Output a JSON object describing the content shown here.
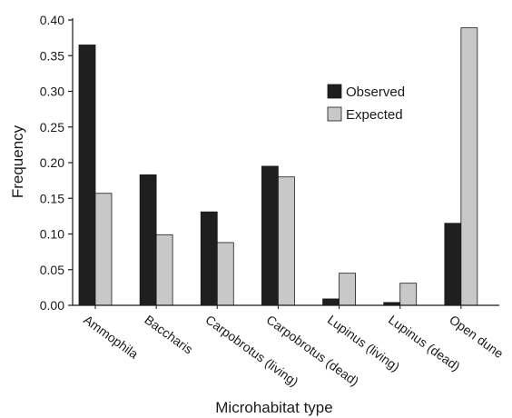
{
  "chart_data": {
    "type": "bar",
    "xlabel": "Microhabitat type",
    "ylabel": "Frequency",
    "ylim": [
      0,
      0.4
    ],
    "yticks": [
      "0.00",
      "0.05",
      "0.10",
      "0.15",
      "0.20",
      "0.25",
      "0.30",
      "0.35",
      "0.40"
    ],
    "grid": false,
    "legend_position": "top-right",
    "categories": [
      "Ammophila",
      "Baccharis",
      "Carpobrotus (living)",
      "Carpobrotus (dead)",
      "Lupinus (living)",
      "Lupinus (dead)",
      "Open dune"
    ],
    "series": [
      {
        "name": "Observed",
        "color": "#1f1f1f",
        "values": [
          0.365,
          0.183,
          0.131,
          0.195,
          0.009,
          0.004,
          0.115
        ]
      },
      {
        "name": "Expected",
        "color": "#c8c8c8",
        "values": [
          0.157,
          0.099,
          0.088,
          0.18,
          0.045,
          0.031,
          0.389
        ]
      }
    ]
  }
}
